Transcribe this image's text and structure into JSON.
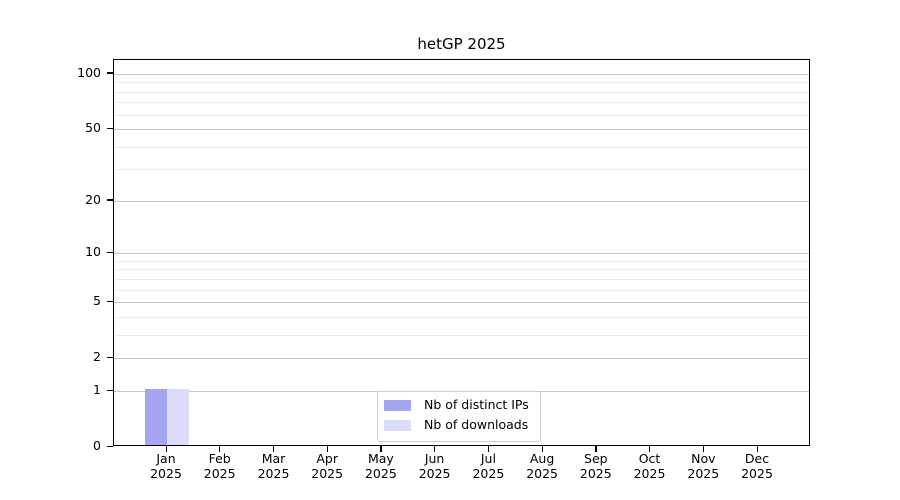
{
  "chart_data": {
    "type": "bar",
    "title": "hetGP 2025",
    "categories": [
      "Jan 2025",
      "Feb 2025",
      "Mar 2025",
      "Apr 2025",
      "May 2025",
      "Jun 2025",
      "Jul 2025",
      "Aug 2025",
      "Sep 2025",
      "Oct 2025",
      "Nov 2025",
      "Dec 2025"
    ],
    "series": [
      {
        "name": "Nb of distinct IPs",
        "color": "#a5a5f0",
        "values": [
          1,
          0,
          0,
          0,
          0,
          0,
          0,
          0,
          0,
          0,
          0,
          0
        ]
      },
      {
        "name": "Nb of downloads",
        "color": "#dbdbfa",
        "values": [
          1,
          0,
          0,
          0,
          0,
          0,
          0,
          0,
          0,
          0,
          0,
          0
        ]
      }
    ],
    "xlabel": "",
    "ylabel": "",
    "y_scale": "log1p",
    "ylim": [
      0,
      118
    ],
    "y_major_ticks": [
      0,
      1,
      2,
      5,
      10,
      20,
      50,
      100
    ],
    "y_minor_gridlines": [
      3,
      4,
      6,
      7,
      8,
      9,
      30,
      40,
      60,
      70,
      80,
      90
    ],
    "grid": true,
    "legend_position": "lower center",
    "colors": {
      "major_grid": "#c9c9c9",
      "minor_grid": "#ececec",
      "spine": "#000000",
      "background": "#ffffff",
      "text": "#000000"
    }
  }
}
